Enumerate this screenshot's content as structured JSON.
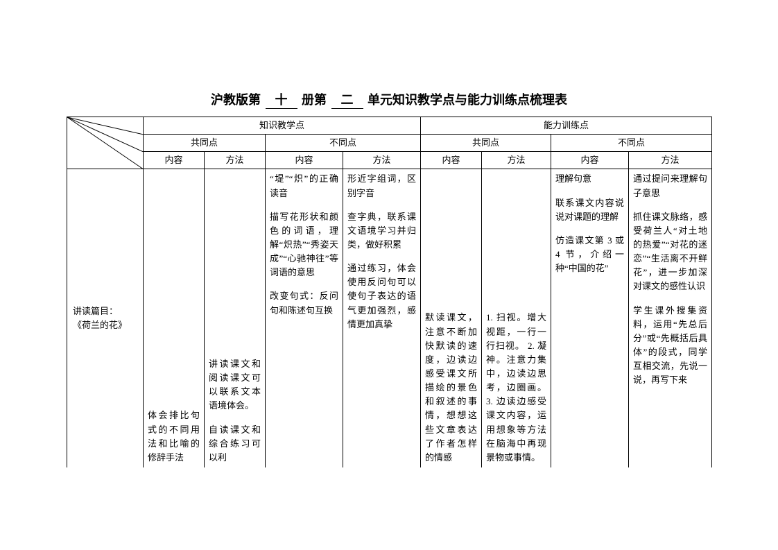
{
  "title": {
    "prefix": "沪教版第",
    "blank1": "十",
    "mid": "册第",
    "blank2": "二",
    "suffix": "单元知识教学点与能力训练点梳理表"
  },
  "headers": {
    "知识教学点": "知识教学点",
    "能力训练点": "能力训练点",
    "共同点": "共同点",
    "不同点": "不同点",
    "内容": "内容",
    "方法": "方法"
  },
  "row": {
    "label": "讲读篇目：\n《荷兰的花》",
    "c1": "体会排比句式的不同用法和比喻的修辞手法",
    "c2": "讲读课文和阅读课文可以联系文本语境体会。\n\n自读课文和综合练习可以利",
    "c3": "“堤”“炽”的正确读音\n\n描写花形状和颜色的词语，理解“炽热”“秀姿天成”“心驰神往”等词语的意思\n\n改变句式：反问句和陈述句互换",
    "c4": "形近字组词，区别字音\n\n查字典，联系课文语境学习并归类，做好积累\n\n通过练习，体会使用反问句可以使句子表达的语气更加强烈，感情更加真挚",
    "c5": "默读课文，注意不断加快默读的速度，边读边感受课文所描绘的景色和叙述的事情，想想这些文章表达了作者怎样的情感",
    "c6": "1. 扫视。增大视距，一行一行扫视。\n2. 凝神。注意力集中，边读边思考，边圈画。\n3. 边读边感受课文内容，运用想象等方法在脑海中再现景物或事情。",
    "c7": "理解句意\n\n联系课文内容说说对课题的理解\n\n仿造课文第 3 或 4 节，介绍一种“中国的花”",
    "c8": "通过提问来理解句子意思\n\n抓住课文脉络，感受荷兰人“对土地的热爱”“对花的迷恋”“生活离不开鲜花”，进一步加深对课文的感性认识\n\n学生课外搜集资料，运用“先总后分”或“先概括后具体”的段式，同学互相交流，先说一说，再写下来"
  },
  "style": {
    "body_row_height": 430
  }
}
